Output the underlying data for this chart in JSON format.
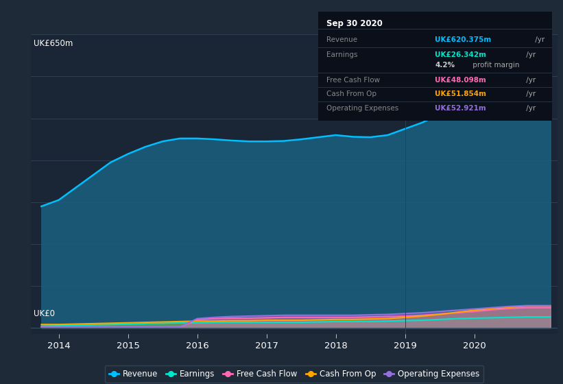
{
  "bg_color": "#1e2a38",
  "plot_bg_color": "#1a2535",
  "ylabel_top": "UK£650m",
  "ylabel_bottom": "UK£0",
  "x_ticks": [
    2014,
    2015,
    2016,
    2017,
    2018,
    2019,
    2020
  ],
  "xlim": [
    2013.6,
    2021.2
  ],
  "ylim": [
    -15,
    700
  ],
  "zero_y": 0,
  "series": {
    "revenue": {
      "color": "#00bfff",
      "fill_color": "#1a6080",
      "x": [
        2013.75,
        2014.0,
        2014.25,
        2014.5,
        2014.75,
        2015.0,
        2015.25,
        2015.5,
        2015.75,
        2016.0,
        2016.25,
        2016.5,
        2016.75,
        2017.0,
        2017.25,
        2017.5,
        2017.75,
        2018.0,
        2018.25,
        2018.5,
        2018.75,
        2019.0,
        2019.25,
        2019.5,
        2019.75,
        2020.0,
        2020.25,
        2020.5,
        2020.75,
        2021.1
      ],
      "y": [
        290,
        305,
        335,
        365,
        395,
        415,
        432,
        445,
        452,
        452,
        450,
        447,
        445,
        445,
        446,
        450,
        455,
        460,
        456,
        455,
        460,
        475,
        490,
        510,
        532,
        558,
        573,
        592,
        618,
        628
      ]
    },
    "earnings": {
      "color": "#00e5cc",
      "fill_color": "#00e5cc",
      "x": [
        2013.75,
        2014.0,
        2014.25,
        2014.5,
        2014.75,
        2015.0,
        2015.25,
        2015.5,
        2015.75,
        2016.0,
        2016.25,
        2016.5,
        2016.75,
        2017.0,
        2017.25,
        2017.5,
        2017.75,
        2018.0,
        2018.25,
        2018.5,
        2018.75,
        2019.0,
        2019.25,
        2019.5,
        2019.75,
        2020.0,
        2020.25,
        2020.5,
        2020.75,
        2021.1
      ],
      "y": [
        4,
        5,
        6,
        7,
        8,
        9,
        10,
        11,
        12,
        12,
        13,
        13,
        13,
        13,
        13,
        13,
        14,
        15,
        15,
        15,
        16,
        17,
        18,
        20,
        22,
        23,
        24,
        25,
        26,
        26
      ]
    },
    "free_cash_flow": {
      "color": "#ff69b4",
      "fill_color": "#ff69b4",
      "x": [
        2013.75,
        2014.0,
        2014.25,
        2014.5,
        2014.75,
        2015.0,
        2015.25,
        2015.5,
        2015.75,
        2016.0,
        2016.25,
        2016.5,
        2016.75,
        2017.0,
        2017.25,
        2017.5,
        2017.75,
        2018.0,
        2018.25,
        2018.5,
        2018.75,
        2019.0,
        2019.25,
        2019.5,
        2019.75,
        2020.0,
        2020.25,
        2020.5,
        2020.75,
        2021.1
      ],
      "y": [
        2,
        2,
        2,
        2,
        2,
        2,
        2,
        2,
        2,
        20,
        22,
        23,
        23,
        24,
        25,
        25,
        25,
        25,
        25,
        26,
        27,
        28,
        30,
        33,
        36,
        39,
        43,
        46,
        48,
        48
      ]
    },
    "cash_from_op": {
      "color": "#ffa500",
      "fill_color": "#ffa500",
      "x": [
        2013.75,
        2014.0,
        2014.25,
        2014.5,
        2014.75,
        2015.0,
        2015.25,
        2015.5,
        2015.75,
        2016.0,
        2016.25,
        2016.5,
        2016.75,
        2017.0,
        2017.25,
        2017.5,
        2017.75,
        2018.0,
        2018.25,
        2018.5,
        2018.75,
        2019.0,
        2019.25,
        2019.5,
        2019.75,
        2020.0,
        2020.25,
        2020.5,
        2020.75,
        2021.1
      ],
      "y": [
        8,
        8,
        9,
        10,
        11,
        12,
        13,
        14,
        15,
        16,
        16,
        17,
        17,
        18,
        18,
        18,
        19,
        20,
        20,
        21,
        22,
        25,
        28,
        32,
        37,
        42,
        46,
        49,
        52,
        52
      ]
    },
    "operating_expenses": {
      "color": "#9370db",
      "fill_color": "#9370db",
      "x": [
        2013.75,
        2014.0,
        2014.25,
        2014.5,
        2014.75,
        2015.0,
        2015.25,
        2015.5,
        2015.75,
        2016.0,
        2016.25,
        2016.5,
        2016.75,
        2017.0,
        2017.25,
        2017.5,
        2017.75,
        2018.0,
        2018.25,
        2018.5,
        2018.75,
        2019.0,
        2019.25,
        2019.5,
        2019.75,
        2020.0,
        2020.25,
        2020.5,
        2020.75,
        2021.1
      ],
      "y": [
        2,
        2,
        2,
        2,
        2,
        2,
        2,
        2,
        2,
        22,
        25,
        27,
        28,
        29,
        30,
        30,
        30,
        30,
        30,
        31,
        32,
        34,
        36,
        39,
        42,
        45,
        48,
        51,
        53,
        53
      ]
    }
  },
  "infobox": {
    "date": "Sep 30 2020",
    "rows": [
      {
        "label": "Revenue",
        "value": "UK£620.375m",
        "unit": " /yr",
        "val_color": "#00bfff",
        "has_divider_above": true
      },
      {
        "label": "Earnings",
        "value": "UK£26.342m",
        "unit": " /yr",
        "val_color": "#00e5cc",
        "has_divider_above": true
      },
      {
        "label": "",
        "value": "4.2%",
        "unit": " profit margin",
        "val_color": "#cccccc",
        "has_divider_above": false
      },
      {
        "label": "Free Cash Flow",
        "value": "UK£48.098m",
        "unit": " /yr",
        "val_color": "#ff69b4",
        "has_divider_above": true
      },
      {
        "label": "Cash From Op",
        "value": "UK£51.854m",
        "unit": " /yr",
        "val_color": "#ffa500",
        "has_divider_above": true
      },
      {
        "label": "Operating Expenses",
        "value": "UK£52.921m",
        "unit": " /yr",
        "val_color": "#9370db",
        "has_divider_above": true
      }
    ]
  },
  "legend": [
    {
      "label": "Revenue",
      "color": "#00bfff"
    },
    {
      "label": "Earnings",
      "color": "#00e5cc"
    },
    {
      "label": "Free Cash Flow",
      "color": "#ff69b4"
    },
    {
      "label": "Cash From Op",
      "color": "#ffa500"
    },
    {
      "label": "Operating Expenses",
      "color": "#9370db"
    }
  ]
}
